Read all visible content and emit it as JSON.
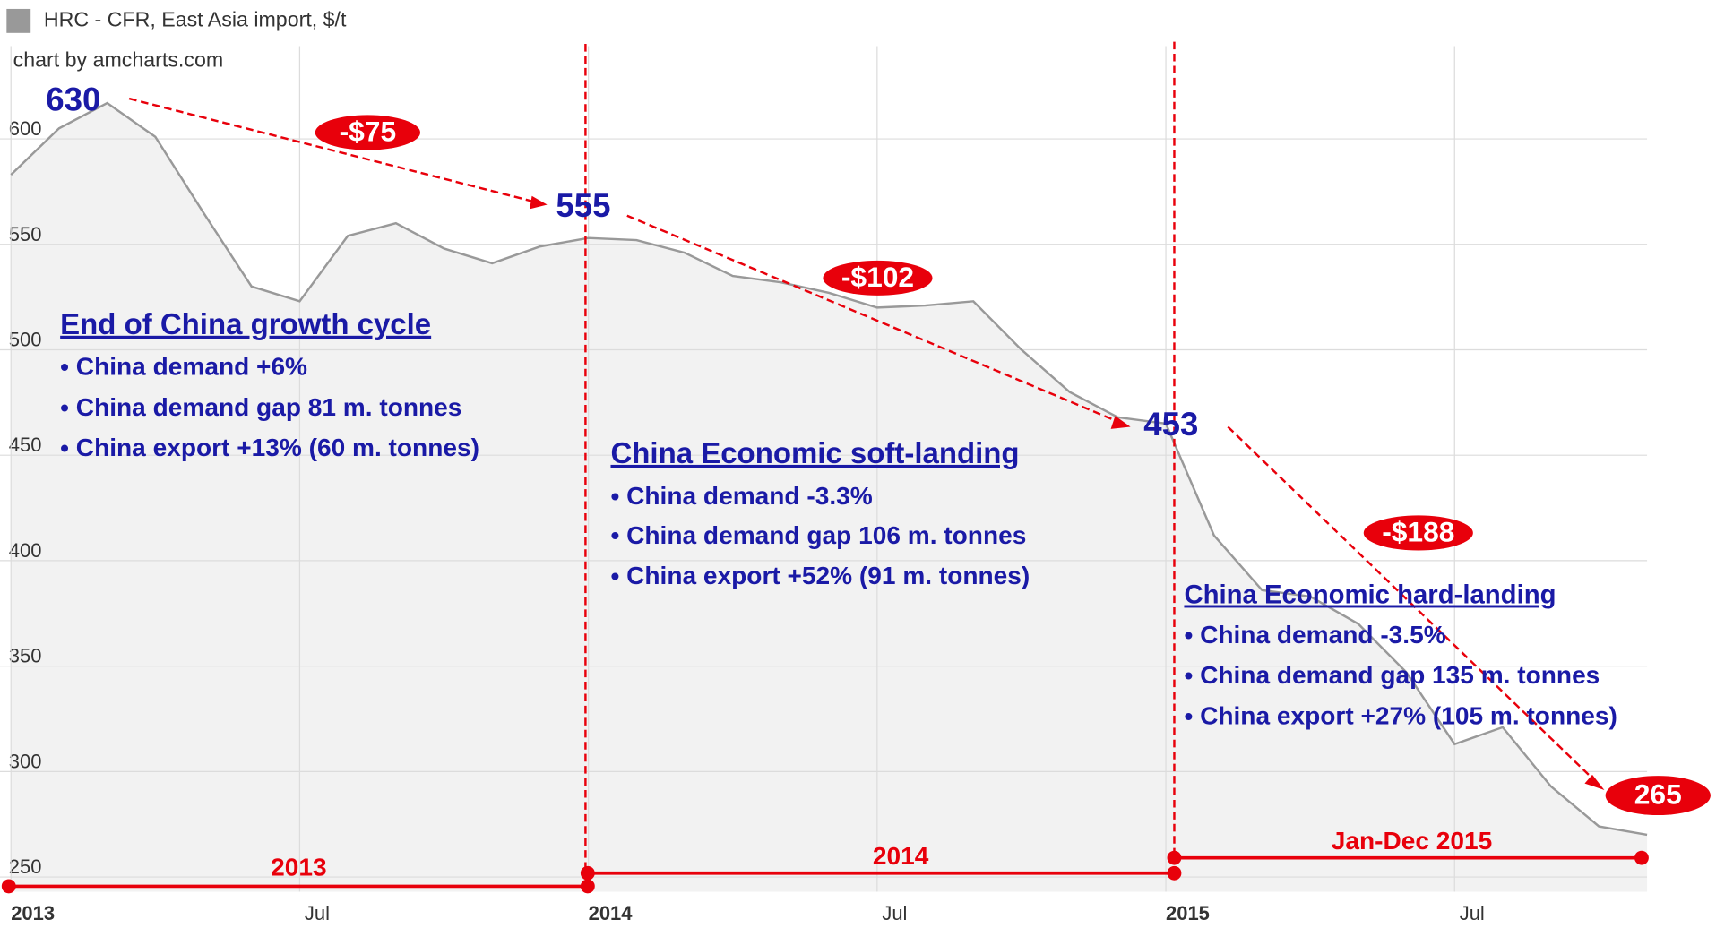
{
  "chart_data": {
    "type": "area",
    "credit": "chart by amcharts.com",
    "x": [
      "2013-01",
      "2013-02",
      "2013-03",
      "2013-04",
      "2013-05",
      "2013-06",
      "2013-07",
      "2013-08",
      "2013-09",
      "2013-10",
      "2013-11",
      "2013-12",
      "2014-01",
      "2014-02",
      "2014-03",
      "2014-04",
      "2014-05",
      "2014-06",
      "2014-07",
      "2014-08",
      "2014-09",
      "2014-10",
      "2014-11",
      "2014-12",
      "2015-01",
      "2015-02",
      "2015-03",
      "2015-04",
      "2015-05",
      "2015-06",
      "2015-07",
      "2015-08",
      "2015-09",
      "2015-10",
      "2015-11"
    ],
    "series": [
      {
        "name": "HRC - CFR, East Asia import, $/t",
        "color": "#999999",
        "values": [
          583,
          605,
          617,
          601,
          565,
          530,
          523,
          554,
          560,
          548,
          541,
          549,
          553,
          552,
          546,
          535,
          532,
          527,
          520,
          521,
          523,
          500,
          480,
          468,
          465,
          412,
          386,
          383,
          370,
          347,
          313,
          321,
          293,
          274,
          270
        ]
      }
    ],
    "xlim": [
      "2013-01",
      "2015-11"
    ],
    "xticks": [
      {
        "value": "2013-01",
        "label": "2013"
      },
      {
        "value": "2013-07",
        "label": "Jul"
      },
      {
        "value": "2014-01",
        "label": "2014"
      },
      {
        "value": "2014-07",
        "label": "Jul"
      },
      {
        "value": "2015-01",
        "label": "2015"
      },
      {
        "value": "2015-07",
        "label": "Jul"
      }
    ],
    "ylim": [
      243,
      644
    ],
    "yticks": [
      250,
      300,
      350,
      400,
      450,
      500,
      550,
      600
    ],
    "grid": true,
    "price_labels": [
      "630",
      "555",
      "453",
      "265"
    ],
    "change_labels": [
      "-$75",
      "-$102",
      "-$188"
    ],
    "periods": [
      "2013",
      "2014",
      "Jan-Dec 2015"
    ],
    "notes": [
      {
        "heading": "End of China growth cycle",
        "bullets": [
          "China demand +6%",
          "China demand gap 81 m. tonnes",
          "China export +13% (60 m. tonnes)"
        ]
      },
      {
        "heading": "China Economic soft-landing",
        "bullets": [
          "China demand -3.3%",
          "China demand gap 106 m. tonnes",
          "China export +52% (91 m. tonnes)"
        ]
      },
      {
        "heading": "China Economic hard-landing",
        "bullets": [
          "China demand -3.5%",
          "China demand gap 135 m. tonnes",
          "China export +27% (105 m. tonnes)"
        ]
      }
    ]
  }
}
